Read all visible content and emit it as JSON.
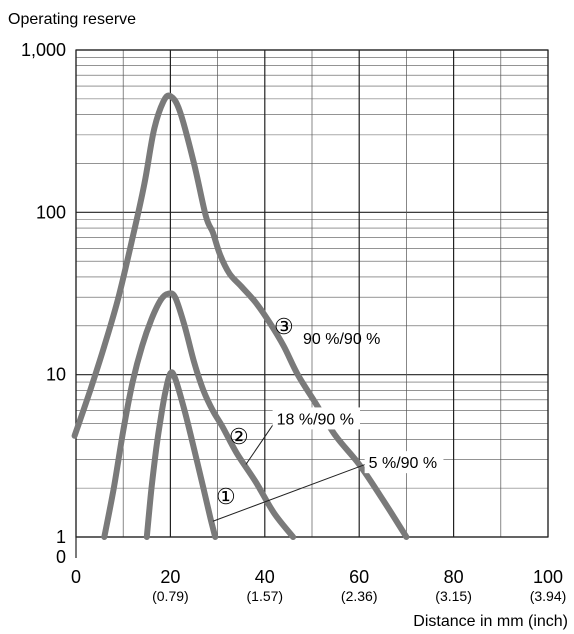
{
  "chart_data": {
    "type": "line",
    "ylabel": "Operating reserve",
    "xlabel": "Distance in mm (inch)",
    "xlim": [
      0,
      100
    ],
    "ylim": [
      1,
      1000
    ],
    "y_scale": "log",
    "grid": true,
    "x_ticks": [
      {
        "value": 0,
        "label": "0",
        "sub": ""
      },
      {
        "value": 20,
        "label": "20",
        "sub": "(0.79)"
      },
      {
        "value": 40,
        "label": "40",
        "sub": "(1.57)"
      },
      {
        "value": 60,
        "label": "60",
        "sub": "(2.36)"
      },
      {
        "value": 80,
        "label": "80",
        "sub": "(3.15)"
      },
      {
        "value": 100,
        "label": "100",
        "sub": "(3.94)"
      }
    ],
    "y_ticks": [
      {
        "value": 1,
        "label": "1"
      },
      {
        "value": 10,
        "label": "10"
      },
      {
        "value": 100,
        "label": "100"
      },
      {
        "value": 1000,
        "label": "1,000"
      }
    ],
    "y_zero_label": "0",
    "series": [
      {
        "name": "90 %/90 %",
        "marker": "③",
        "color": "#7a7a7a",
        "points": [
          [
            -0.3,
            4.2
          ],
          [
            3,
            8
          ],
          [
            6,
            15
          ],
          [
            9,
            30
          ],
          [
            12,
            70
          ],
          [
            14.5,
            150
          ],
          [
            16.5,
            320
          ],
          [
            18.5,
            480
          ],
          [
            20,
            520
          ],
          [
            22,
            420
          ],
          [
            25,
            200
          ],
          [
            27.5,
            95
          ],
          [
            29,
            75
          ],
          [
            30.5,
            55
          ],
          [
            32.5,
            42
          ],
          [
            35,
            35
          ],
          [
            38,
            28
          ],
          [
            41,
            21
          ],
          [
            44,
            15
          ],
          [
            47,
            10
          ],
          [
            51,
            6.5
          ],
          [
            55,
            4.2
          ],
          [
            60,
            2.8
          ],
          [
            65,
            1.7
          ],
          [
            70,
            1
          ]
        ]
      },
      {
        "name": "18 %/90 %",
        "marker": "②",
        "color": "#7a7a7a",
        "points": [
          [
            6,
            1
          ],
          [
            8,
            2
          ],
          [
            10,
            4.5
          ],
          [
            12,
            9
          ],
          [
            14,
            15
          ],
          [
            16,
            22
          ],
          [
            18,
            29
          ],
          [
            19.5,
            31.5
          ],
          [
            21,
            30
          ],
          [
            23,
            20
          ],
          [
            25,
            12
          ],
          [
            27,
            8
          ],
          [
            29,
            6
          ],
          [
            31,
            4.8
          ],
          [
            34,
            3.3
          ],
          [
            38,
            2.2
          ],
          [
            42,
            1.4
          ],
          [
            46,
            1
          ]
        ]
      },
      {
        "name": "5 %/90 %",
        "marker": "①",
        "color": "#7a7a7a",
        "points": [
          [
            15,
            1
          ],
          [
            16,
            2
          ],
          [
            17,
            3.5
          ],
          [
            18,
            5.5
          ],
          [
            19,
            8
          ],
          [
            20,
            10.2
          ],
          [
            21,
            9.5
          ],
          [
            23,
            6
          ],
          [
            25,
            3.5
          ],
          [
            27,
            2
          ],
          [
            28.5,
            1.3
          ],
          [
            29.5,
            1
          ]
        ]
      }
    ],
    "annotations": [
      {
        "label": "18 %/90 %",
        "target": [
          42.5,
          5.3
        ],
        "line_to": [
          36,
          2.8
        ]
      },
      {
        "label": "5 %/90 %",
        "target": [
          62,
          2.85
        ],
        "line_to": [
          29,
          1.25
        ]
      }
    ]
  }
}
